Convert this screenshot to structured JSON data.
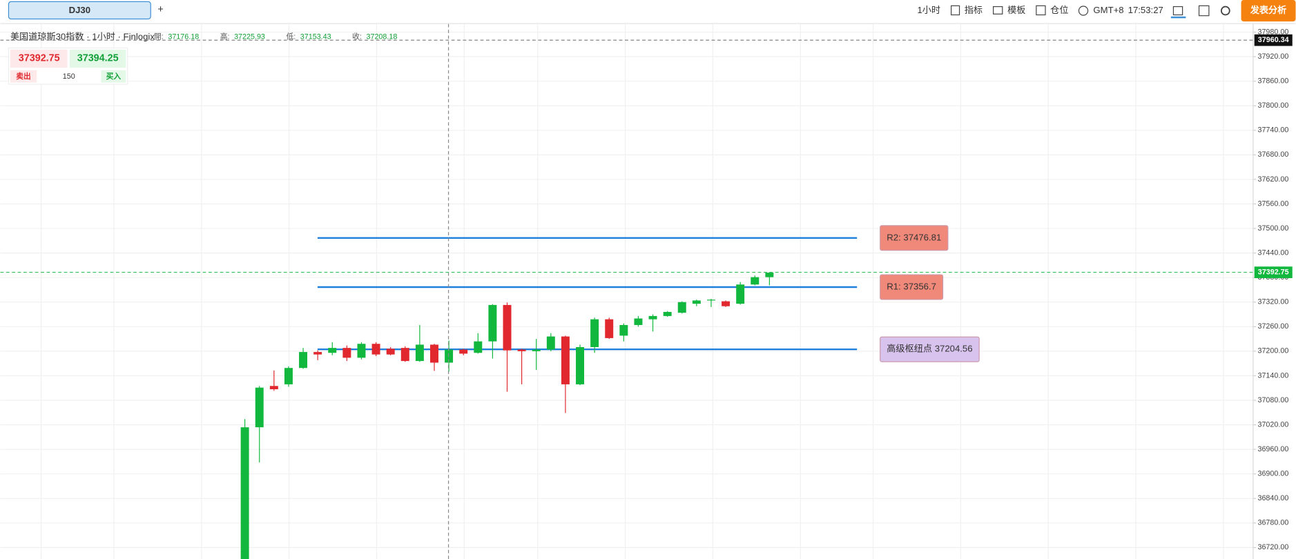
{
  "toolbar": {
    "tab": "DJ30",
    "add_tab": "+",
    "interval": "1小时",
    "indicators": "指标",
    "templates": "模板",
    "positions": "仓位",
    "timezone": "GMT+8",
    "clock": "17:53:27",
    "publish": "发表分析"
  },
  "header": {
    "symbol": "美国道琼斯30指数 · 1小时 · Finlogix",
    "ohlc": [
      {
        "label": "開:",
        "value": "37176.18"
      },
      {
        "label": "高:",
        "value": "37225.93"
      },
      {
        "label": "低:",
        "value": "37153.43"
      },
      {
        "label": "收:",
        "value": "37208.18"
      }
    ]
  },
  "trade_widget": {
    "sell_price": "37392.75",
    "buy_price": "37394.25",
    "sell": "卖出",
    "buy": "买入",
    "volume": "150"
  },
  "chart_data": {
    "type": "candlestick",
    "up_color": "#12b83e",
    "down_color": "#e0282e",
    "ylim": [
      36692,
      38000
    ],
    "yticks": [
      {
        "value": 36720,
        "label": "36720.00"
      },
      {
        "value": 36780,
        "label": "36780.00"
      },
      {
        "value": 36840,
        "label": "36840.00"
      },
      {
        "value": 36900,
        "label": "36900.00"
      },
      {
        "value": 36960,
        "label": "36960.00"
      },
      {
        "value": 37020,
        "label": "37020.00"
      },
      {
        "value": 37080,
        "label": "37080.00"
      },
      {
        "value": 37140,
        "label": "37140.00"
      },
      {
        "value": 37200,
        "label": "37200.00"
      },
      {
        "value": 37260,
        "label": "37260.00"
      },
      {
        "value": 37320,
        "label": "37320.00"
      },
      {
        "value": 37380,
        "label": "37380.00"
      },
      {
        "value": 37440,
        "label": "37440.00"
      },
      {
        "value": 37500,
        "label": "37500.00"
      },
      {
        "value": 37560,
        "label": "37560.00"
      },
      {
        "value": 37620,
        "label": "37620.00"
      },
      {
        "value": 37680,
        "label": "37680.00"
      },
      {
        "value": 37740,
        "label": "37740.00"
      },
      {
        "value": 37800,
        "label": "37800.00"
      },
      {
        "value": 37860,
        "label": "37860.00"
      },
      {
        "value": 37920,
        "label": "37920.00"
      },
      {
        "value": 37980,
        "label": "37980.00"
      }
    ],
    "grid": true,
    "open": [
      36680,
      37014,
      37115,
      37119,
      37159,
      37198,
      37196,
      37208,
      37184,
      37218,
      37206,
      37208,
      37176,
      37216,
      37172,
      37204,
      37196,
      37224,
      37313,
      37204,
      37200,
      37204,
      37236,
      37119,
      37210,
      37278,
      37238,
      37264,
      37278,
      37286,
      37294,
      37316,
      37324,
      37322,
      37316,
      37363,
      37381
    ],
    "high": [
      37034,
      37115,
      37153,
      37163,
      37208,
      37202,
      37222,
      37214,
      37222,
      37222,
      37210,
      37212,
      37264,
      37218,
      37226,
      37206,
      37244,
      37315,
      37319,
      37206,
      37230,
      37244,
      37238,
      37216,
      37282,
      37282,
      37268,
      37286,
      37290,
      37298,
      37322,
      37326,
      37328,
      37324,
      37369,
      37385,
      37393
    ],
    "low": [
      36650,
      36928,
      37103,
      37113,
      37157,
      37178,
      37190,
      37176,
      37180,
      37188,
      37190,
      37174,
      37174,
      37152,
      37150,
      37190,
      37194,
      37182,
      37101,
      37119,
      37154,
      37200,
      37049,
      37117,
      37196,
      37230,
      37224,
      37260,
      37248,
      37284,
      37292,
      37310,
      37308,
      37308,
      37314,
      37361,
      37361
    ],
    "close": [
      37014,
      37111,
      37107,
      37159,
      37198,
      37192,
      37208,
      37184,
      37218,
      37192,
      37192,
      37176,
      37216,
      37172,
      37204,
      37194,
      37224,
      37313,
      37202,
      37200,
      37204,
      37236,
      37119,
      37210,
      37278,
      37232,
      37264,
      37280,
      37286,
      37296,
      37320,
      37324,
      37326,
      37310,
      37363,
      37381,
      37392
    ],
    "levels": [
      {
        "text": "R2: 37476.81",
        "value": 37476.81,
        "color": "#f0897a"
      },
      {
        "text": "R1: 37356.7",
        "value": 37356.7,
        "color": "#f0897a"
      },
      {
        "text": "高级枢纽点 37204.56",
        "value": 37204.56,
        "color": "#d8c3ee"
      }
    ],
    "last_price": 37392.75,
    "crosshair_price": 37960.34
  }
}
